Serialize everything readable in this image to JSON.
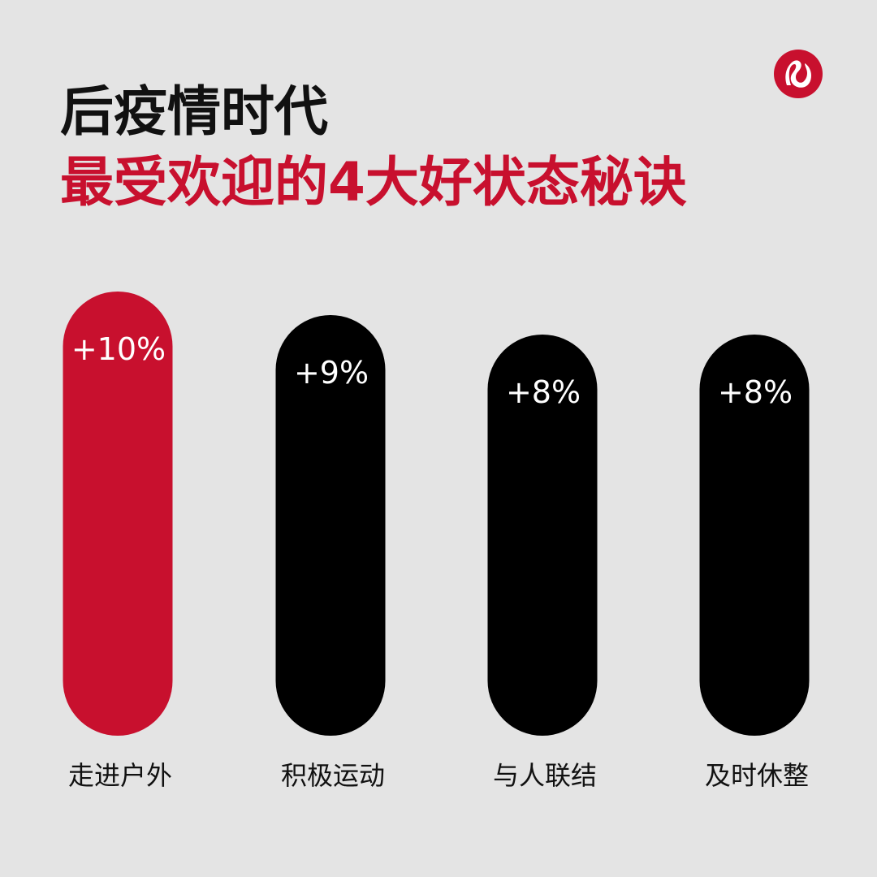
{
  "header": {
    "title_line1": "后疫情时代",
    "title_line2": "最受欢迎的4大好状态秘诀"
  },
  "brand": {
    "logo_icon": "lululemon-logo-icon",
    "color": "#c8102e"
  },
  "colors": {
    "highlight": "#c8102e",
    "bar": "#000000",
    "background": "#e4e4e4",
    "label_text": "#ffffff",
    "category_text": "#111111"
  },
  "chart_data": {
    "type": "bar",
    "categories": [
      "走进户外",
      "积极运动",
      "与人联结",
      "及时休整"
    ],
    "values": [
      10,
      9,
      8,
      8
    ],
    "data_labels": [
      "+10%",
      "+9%",
      "+8%",
      "+8%"
    ],
    "highlight_index": 0,
    "legend": "none",
    "grid": false
  }
}
